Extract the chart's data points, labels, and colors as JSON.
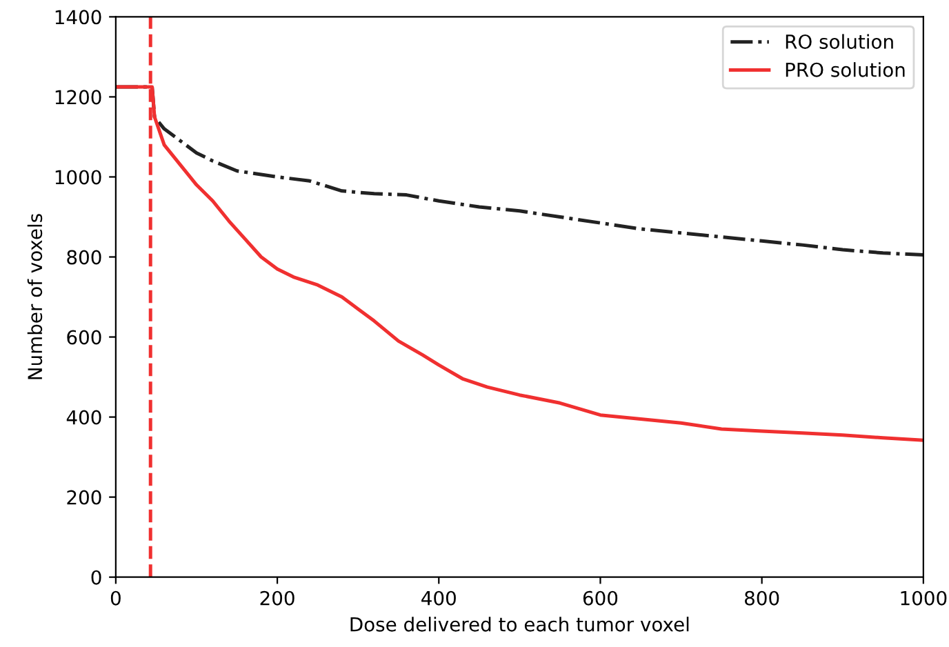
{
  "chart_data": {
    "type": "line",
    "xlabel": "Dose delivered to each tumor voxel",
    "ylabel": "Number of voxels",
    "xlim": [
      0,
      1000
    ],
    "ylim": [
      0,
      1400
    ],
    "xticks": [
      0,
      200,
      400,
      600,
      800,
      1000
    ],
    "yticks": [
      0,
      200,
      400,
      600,
      800,
      1000,
      1200,
      1400
    ],
    "grid": false,
    "legend": "top right",
    "ref_lines": [
      {
        "axis": "x",
        "value": 43,
        "color": "#f03030",
        "line_style": "dashed"
      }
    ],
    "series": [
      {
        "name": "RO solution",
        "color": "#222222",
        "line_style": "dashdot",
        "x": [
          0,
          45,
          48,
          60,
          80,
          100,
          120,
          150,
          200,
          240,
          280,
          320,
          360,
          400,
          450,
          500,
          550,
          600,
          650,
          700,
          750,
          800,
          850,
          900,
          950,
          1000
        ],
        "values": [
          1225,
          1225,
          1150,
          1120,
          1090,
          1060,
          1040,
          1015,
          1000,
          990,
          965,
          958,
          955,
          940,
          925,
          915,
          900,
          885,
          870,
          860,
          850,
          840,
          830,
          818,
          810,
          805
        ]
      },
      {
        "name": "PRO solution",
        "color": "#f03030",
        "line_style": "solid",
        "x": [
          0,
          45,
          48,
          60,
          80,
          100,
          120,
          140,
          160,
          180,
          200,
          220,
          250,
          280,
          300,
          320,
          350,
          380,
          400,
          430,
          460,
          500,
          550,
          600,
          650,
          700,
          750,
          800,
          850,
          900,
          950,
          1000
        ],
        "values": [
          1225,
          1225,
          1150,
          1080,
          1030,
          980,
          940,
          890,
          845,
          800,
          770,
          750,
          730,
          700,
          670,
          640,
          590,
          555,
          530,
          495,
          475,
          455,
          435,
          405,
          395,
          385,
          370,
          365,
          360,
          355,
          348,
          342
        ]
      }
    ]
  }
}
